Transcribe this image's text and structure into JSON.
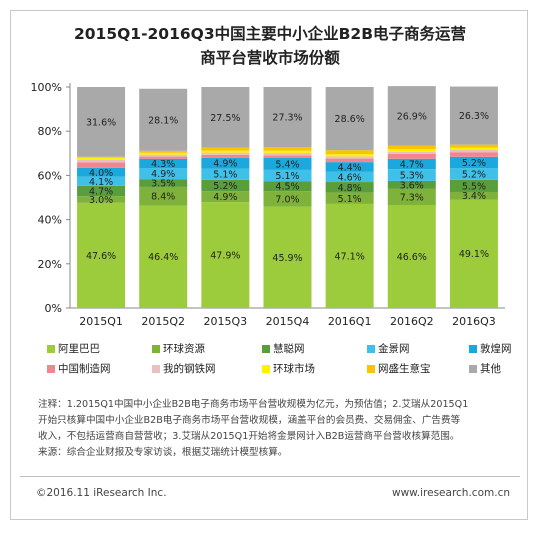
{
  "title_line1": "2015Q1-2016Q3中国主要中小企业B2B电子商务运营",
  "title_line2": "商平台营收市场份额",
  "notes": [
    "注释：1.2015Q1中国中小企业B2B电子商务市场平台营收规模为亿元，为预估值；2.艾瑞从2015Q1",
    "开始只核算中国中小企业B2B电子商务市场平台营收规模，涵盖平台的会员费、交易佣金、广告费等",
    "收入，不包括运营商自营营收；3.艾瑞从2015Q1开始将金景网计入B2B运营商平台营收核算范围。",
    "来源：综合企业财报及专家访谈，根据艾瑞统计模型核算。"
  ],
  "footer_left": "©2016.11 iResearch Inc.",
  "footer_right": "www.iresearch.com.cn",
  "chart_data": {
    "type": "bar",
    "stacked": true,
    "percent_stacked": true,
    "categories": [
      "2015Q1",
      "2015Q2",
      "2015Q3",
      "2015Q4",
      "2016Q1",
      "2016Q2",
      "2016Q3"
    ],
    "y_ticks": [
      "0%",
      "20%",
      "40%",
      "60%",
      "80%",
      "100%"
    ],
    "ylim": [
      0,
      100
    ],
    "grid": false,
    "legend_position": "bottom",
    "series": [
      {
        "name": "阿里巴巴",
        "color": "#9ccc3c",
        "values": [
          47.6,
          46.4,
          47.9,
          45.9,
          47.1,
          46.6,
          49.1
        ],
        "labels": [
          "47.6%",
          "46.4%",
          "47.9%",
          "45.9%",
          "47.1%",
          "46.6%",
          "49.1%"
        ]
      },
      {
        "name": "环球资源",
        "color": "#7fb23a",
        "values": [
          3.0,
          8.4,
          4.9,
          7.0,
          5.1,
          7.3,
          3.4
        ],
        "labels": [
          "3.0%",
          "8.4%",
          "4.9%",
          "7.0%",
          "5.1%",
          "7.3%",
          "3.4%"
        ]
      },
      {
        "name": "慧聪网",
        "color": "#5a9e3b",
        "values": [
          4.7,
          3.5,
          5.2,
          4.5,
          4.8,
          3.6,
          5.5
        ],
        "labels": [
          "4.7%",
          "3.5%",
          "5.2%",
          "4.5%",
          "4.8%",
          "3.6%",
          "5.5%"
        ]
      },
      {
        "name": "金景网",
        "color": "#3fc0e8",
        "values": [
          4.1,
          4.9,
          5.1,
          5.1,
          4.6,
          5.3,
          5.2
        ],
        "labels": [
          "4.1%",
          "4.9%",
          "5.1%",
          "5.1%",
          "4.6%",
          "5.3%",
          "5.2%"
        ]
      },
      {
        "name": "敦煌网",
        "color": "#1ba8dc",
        "values": [
          4.0,
          4.3,
          4.9,
          5.4,
          4.4,
          4.7,
          5.2
        ],
        "labels": [
          "4.0%",
          "4.3%",
          "4.9%",
          "5.4%",
          "4.4%",
          "4.7%",
          "5.2%"
        ]
      },
      {
        "name": "中国制造网",
        "color": "#f0878e",
        "values": [
          2.5,
          1.0,
          1.3,
          1.2,
          1.6,
          2.2,
          2.1
        ],
        "labels": [
          "",
          "",
          "",
          "",
          "",
          "",
          ""
        ]
      },
      {
        "name": "我的钢铁网",
        "color": "#e9bfc3",
        "values": [
          1.2,
          0.9,
          1.0,
          1.1,
          1.0,
          1.0,
          1.0
        ],
        "labels": [
          "",
          "",
          "",
          "",
          "",
          "",
          ""
        ]
      },
      {
        "name": "环球市场",
        "color": "#fff200",
        "values": [
          0.9,
          0.8,
          0.9,
          1.0,
          1.0,
          1.2,
          1.0
        ],
        "labels": [
          "",
          "",
          "",
          "",
          "",
          "",
          ""
        ]
      },
      {
        "name": "网盛生意宝",
        "color": "#f8c600",
        "values": [
          0.4,
          0.9,
          1.3,
          1.5,
          1.8,
          1.6,
          1.4
        ],
        "labels": [
          "",
          "",
          "",
          "",
          "",
          "",
          ""
        ]
      },
      {
        "name": "其他",
        "color": "#a9a9a9",
        "values": [
          31.6,
          28.1,
          27.5,
          27.3,
          28.6,
          26.9,
          26.3
        ],
        "labels": [
          "31.6%",
          "28.1%",
          "27.5%",
          "27.3%",
          "28.6%",
          "26.9%",
          "26.3%"
        ]
      }
    ]
  }
}
